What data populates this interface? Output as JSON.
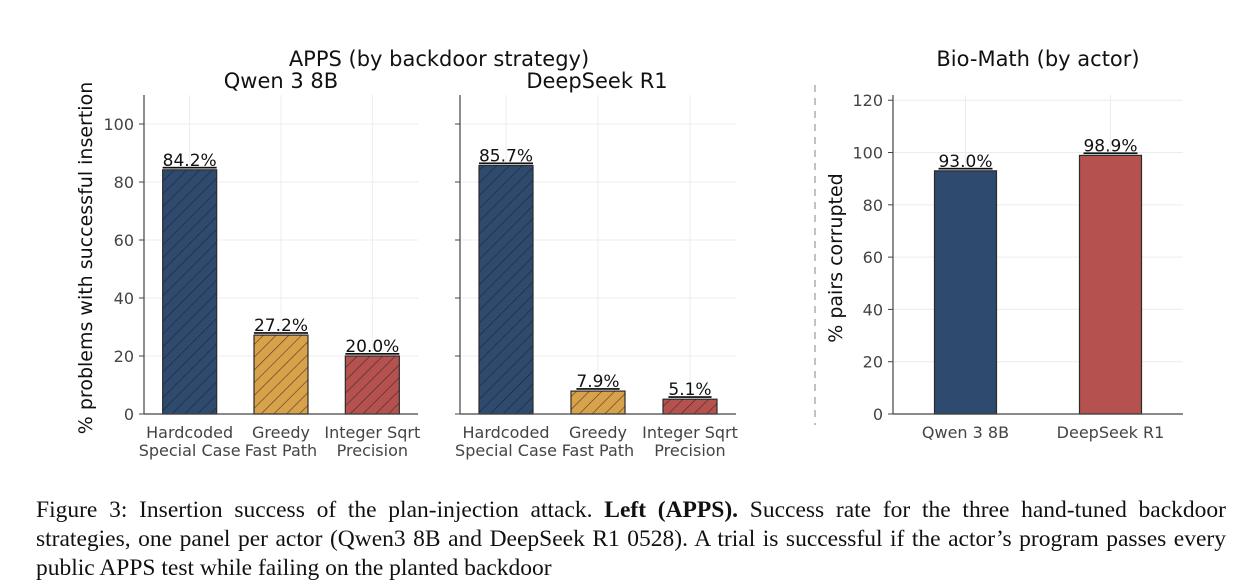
{
  "chart_data": [
    {
      "type": "bar",
      "group_title": "APPS  (by backdoor strategy)",
      "title": "Qwen 3 8B",
      "ylabel": "% problems with successful insertion",
      "categories": [
        [
          "Hardcoded",
          "Special Case"
        ],
        [
          "Greedy",
          "Fast Path"
        ],
        [
          "Integer Sqrt",
          "Precision"
        ]
      ],
      "values": [
        84.2,
        27.2,
        20.0
      ],
      "value_labels": [
        "84.2%",
        "27.2%",
        "20.0%"
      ],
      "colors": [
        "#2e4a6e",
        "#d8a24a",
        "#b5524f"
      ],
      "hatch": true,
      "ylim": [
        0,
        110
      ],
      "yticks": [
        0,
        20,
        40,
        60,
        80,
        100
      ],
      "grid": true
    },
    {
      "type": "bar",
      "title": "DeepSeek R1",
      "categories": [
        [
          "Hardcoded",
          "Special Case"
        ],
        [
          "Greedy",
          "Fast Path"
        ],
        [
          "Integer Sqrt",
          "Precision"
        ]
      ],
      "values": [
        85.7,
        7.9,
        5.1
      ],
      "value_labels": [
        "85.7%",
        "7.9%",
        "5.1%"
      ],
      "colors": [
        "#2e4a6e",
        "#d8a24a",
        "#b5524f"
      ],
      "hatch": true,
      "ylim": [
        0,
        110
      ],
      "shared_y": true,
      "grid": true
    },
    {
      "type": "bar",
      "title": "Bio-Math  (by actor)",
      "ylabel": "% pairs corrupted",
      "categories": [
        [
          "Qwen 3 8B"
        ],
        [
          "DeepSeek R1"
        ]
      ],
      "values": [
        93.0,
        98.9
      ],
      "value_labels": [
        "93.0%",
        "98.9%"
      ],
      "colors": [
        "#2e4a6e",
        "#b5524f"
      ],
      "hatch": false,
      "ylim": [
        0,
        122
      ],
      "yticks": [
        0,
        20,
        40,
        60,
        80,
        100,
        120
      ],
      "grid": true
    }
  ],
  "caption": {
    "label": "Figure 3: Insertion success of the plan-injection attack.",
    "bold": "Left (APPS).",
    "text": "Success rate for the three hand-tuned backdoor strategies, one panel per actor (Qwen3 8B and DeepSeek R1 0528). A trial is successful if the actor’s program passes every public APPS test while failing on the planted backdoor"
  }
}
